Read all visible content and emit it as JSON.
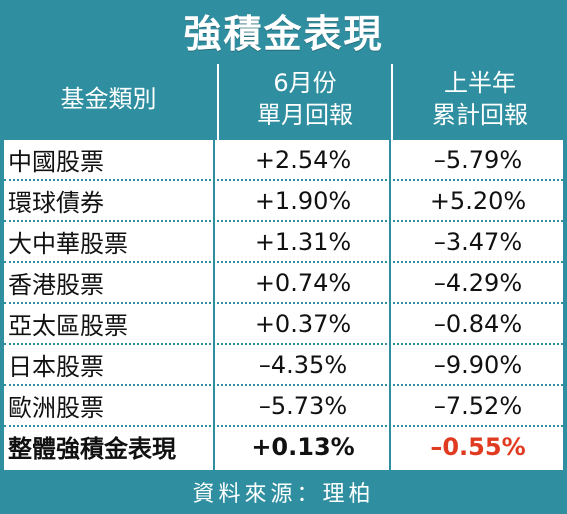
{
  "title": "強積金表現",
  "header": {
    "col1": "基金類別",
    "col2_line1": "6月份",
    "col2_line2": "單月回報",
    "col3_line1": "上半年",
    "col3_line2": "累計回報"
  },
  "rows": [
    {
      "name": "中國股票",
      "month": "+2.54%",
      "ytd": "–5.79%"
    },
    {
      "name": "環球債券",
      "month": "+1.90%",
      "ytd": "+5.20%"
    },
    {
      "name": "大中華股票",
      "month": "+1.31%",
      "ytd": "–3.47%"
    },
    {
      "name": "香港股票",
      "month": "+0.74%",
      "ytd": "–4.29%"
    },
    {
      "name": "亞太區股票",
      "month": "+0.37%",
      "ytd": "–0.84%"
    },
    {
      "name": "日本股票",
      "month": "–4.35%",
      "ytd": "–9.90%"
    },
    {
      "name": "歐洲股票",
      "month": "–5.73%",
      "ytd": "–7.52%"
    },
    {
      "name": "整體強積金表現",
      "month": "+0.13%",
      "ytd": "–0.55%"
    }
  ],
  "footer": "資料來源：理柏",
  "colors": {
    "accent": "#2f8fa0",
    "highlight": "#e03a21"
  }
}
